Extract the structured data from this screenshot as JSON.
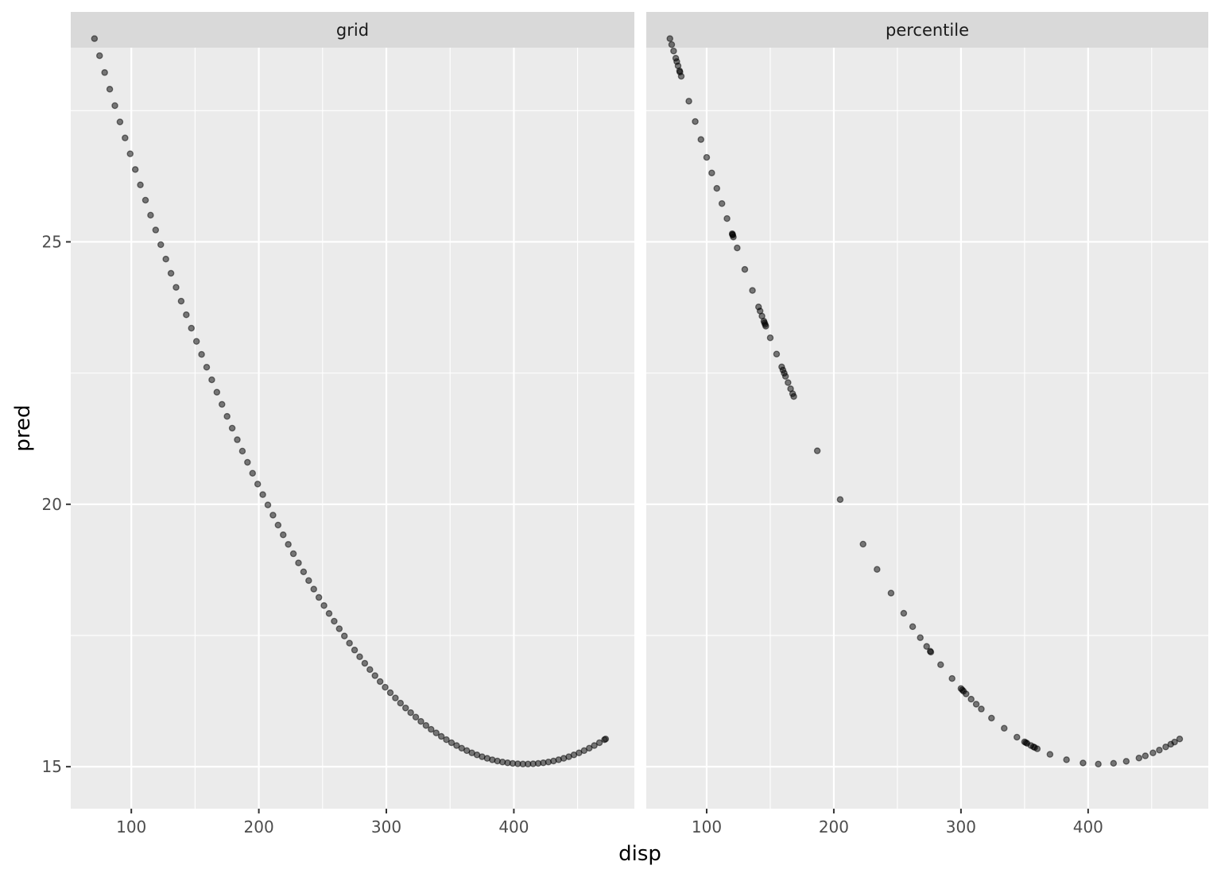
{
  "chart_data": {
    "type": "scatter",
    "xlabel": "disp",
    "ylabel": "pred",
    "xlim": [
      52.5,
      494.5
    ],
    "ylim": [
      14.2,
      28.7
    ],
    "x_ticks": [
      100,
      200,
      300,
      400
    ],
    "y_ticks": [
      15,
      20,
      25
    ],
    "x_tick_labels": [
      "100",
      "200",
      "300",
      "400"
    ],
    "y_tick_labels": [
      "15",
      "20",
      "25"
    ],
    "grid": true,
    "point_color": "#000000",
    "point_alpha": 0.5,
    "panel_background": "#ebebeb",
    "strip_background": "#d9d9d9",
    "model": {
      "intercept": 35.3,
      "linear": -0.099,
      "quadratic": 0.000121
    },
    "panels": [
      {
        "label": "grid",
        "x": [
          71.1,
          75.1,
          79.1,
          83.1,
          87.1,
          91.1,
          95.1,
          99.1,
          103.1,
          107.1,
          111.1,
          115.1,
          119.1,
          123.1,
          127.1,
          131.1,
          135.1,
          139.1,
          143.1,
          147.1,
          151.1,
          155.1,
          159.1,
          163.1,
          167.1,
          171.1,
          175.1,
          179.1,
          183.1,
          187.1,
          191.1,
          195.1,
          199.1,
          203.1,
          207.1,
          211.1,
          215.1,
          219.1,
          223.1,
          227.1,
          231.1,
          235.1,
          239.1,
          243.1,
          247.1,
          251.1,
          255.1,
          259.1,
          263.1,
          267.1,
          271.1,
          275.1,
          279.1,
          283.1,
          287.1,
          291.1,
          295.1,
          299.1,
          303.1,
          307.1,
          311.1,
          315.1,
          319.1,
          323.1,
          327.1,
          331.1,
          335.1,
          339.1,
          343.1,
          347.1,
          351.1,
          355.1,
          359.1,
          363.1,
          367.1,
          371.1,
          375.1,
          379.1,
          383.1,
          387.1,
          391.1,
          395.1,
          399.1,
          403.1,
          407.1,
          411.1,
          415.1,
          419.1,
          423.1,
          427.1,
          431.1,
          435.1,
          439.1,
          443.1,
          447.1,
          451.1,
          455.1,
          459.1,
          463.1,
          467.1,
          471.1,
          472.0
        ]
      },
      {
        "label": "percentile",
        "x": [
          71.1,
          72.5,
          74,
          75.7,
          76.5,
          77.5,
          78.7,
          79,
          80,
          86,
          91,
          95.5,
          100,
          104,
          108,
          112,
          116,
          120.1,
          120.3,
          120.5,
          121,
          124,
          130,
          136,
          140.8,
          142,
          143.5,
          145,
          145.5,
          146,
          146.5,
          150,
          155,
          159,
          160,
          161,
          162,
          164,
          166,
          167.6,
          168.5,
          187,
          205,
          223,
          234,
          245,
          255,
          262,
          268,
          273,
          275.8,
          276.3,
          284,
          293,
          300,
          301,
          302,
          304,
          308,
          312,
          316,
          324,
          334,
          344,
          350,
          351,
          352,
          355,
          357,
          358,
          360,
          370,
          383,
          396,
          408,
          420,
          430,
          440,
          445,
          451,
          456,
          461,
          465,
          468,
          472
        ]
      }
    ]
  }
}
